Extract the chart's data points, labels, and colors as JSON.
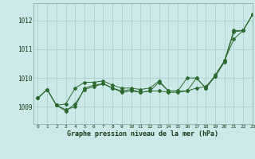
{
  "xlabel_label": "Graphe pression niveau de la mer (hPa)",
  "xlim": [
    -0.5,
    23
  ],
  "ylim": [
    1008.4,
    1012.6
  ],
  "yticks": [
    1009,
    1010,
    1011,
    1012
  ],
  "xticks": [
    0,
    1,
    2,
    3,
    4,
    5,
    6,
    7,
    8,
    9,
    10,
    11,
    12,
    13,
    14,
    15,
    16,
    17,
    18,
    19,
    20,
    21,
    22,
    23
  ],
  "background_color": "#cce8e8",
  "grid_color": "#aacccc",
  "line_color": "#2d6a2d",
  "line1": [
    1009.3,
    1009.6,
    1009.05,
    1008.9,
    1009.0,
    1009.65,
    1009.75,
    1009.8,
    1009.65,
    1009.55,
    1009.6,
    1009.5,
    1009.55,
    1009.55,
    1009.5,
    1009.5,
    1009.55,
    1009.65,
    1009.7,
    1010.05,
    1010.6,
    1011.35,
    1011.65,
    1012.2
  ],
  "line2": [
    1009.3,
    1009.6,
    1009.05,
    1008.85,
    1009.1,
    1009.6,
    1009.7,
    1009.8,
    1009.65,
    1009.5,
    1009.55,
    1009.5,
    1009.55,
    1009.85,
    1009.55,
    1009.55,
    1010.0,
    1010.0,
    1009.65,
    1010.05,
    1010.55,
    1011.6,
    1011.65,
    1012.2
  ],
  "line3": [
    1009.3,
    1009.6,
    1009.05,
    1009.1,
    1009.65,
    1009.85,
    1009.85,
    1009.9,
    1009.75,
    1009.65,
    1009.65,
    1009.6,
    1009.65,
    1009.9,
    1009.55,
    1009.55,
    1009.55,
    1010.0,
    1009.65,
    1010.1,
    1010.6,
    1011.65,
    1011.65,
    1012.2
  ]
}
